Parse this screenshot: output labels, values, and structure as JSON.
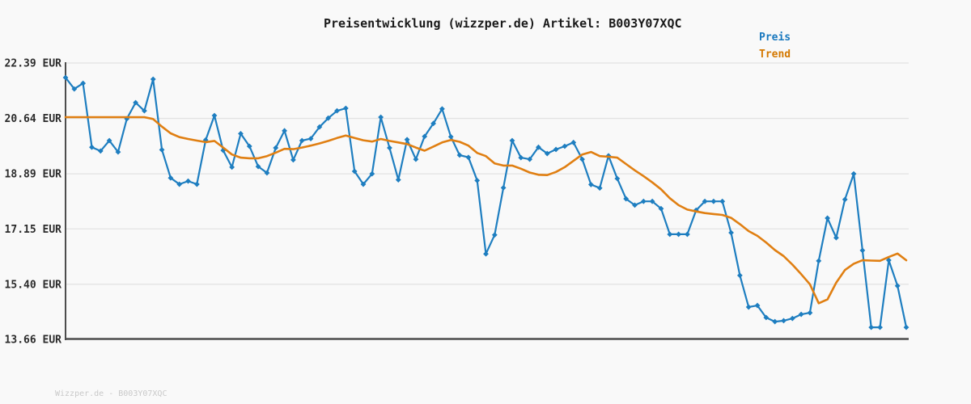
{
  "title": "Preisentwicklung (wizzper.de) Artikel: B003Y07XQC",
  "legend": {
    "preis_label": "Preis",
    "trend_label": "Trend"
  },
  "footer": "Wizzper.de - B003Y07XQC",
  "colors": {
    "background": "#f9f9f9",
    "grid": "#e3e3e3",
    "axis": "#4d4d4d",
    "price": "#1e7ec0",
    "trend": "#e07f12",
    "legend_preis": "#1878be",
    "legend_trend": "#d47800",
    "tick_text": "#2b2b2b",
    "footer_text": "#c9c9c9"
  },
  "chart_data": {
    "type": "line",
    "title": "Preisentwicklung (wizzper.de) Artikel: B003Y07XQC",
    "xlabel": "",
    "ylabel": "",
    "ylim": [
      13.66,
      22.39
    ],
    "grid": true,
    "legend_position": "top-right",
    "y_ticks": [
      {
        "label": "22.39 EUR",
        "value": 22.39
      },
      {
        "label": "20.64 EUR",
        "value": 20.64
      },
      {
        "label": "18.89 EUR",
        "value": 18.89
      },
      {
        "label": "17.15 EUR",
        "value": 17.15
      },
      {
        "label": "15.40 EUR",
        "value": 15.4
      },
      {
        "label": "13.66 EUR",
        "value": 13.66
      }
    ],
    "series": [
      {
        "name": "Preis",
        "color": "#1e7ec0",
        "markers": "diamond",
        "values": [
          21.93,
          21.57,
          21.75,
          19.73,
          19.61,
          19.94,
          19.58,
          20.63,
          21.14,
          20.88,
          21.88,
          19.65,
          18.76,
          18.56,
          18.66,
          18.56,
          19.96,
          20.73,
          19.63,
          19.1,
          20.16,
          19.76,
          19.12,
          18.92,
          19.71,
          20.25,
          19.33,
          19.94,
          20.0,
          20.37,
          20.65,
          20.88,
          20.96,
          18.97,
          18.56,
          18.89,
          20.68,
          19.71,
          18.7,
          19.97,
          19.35,
          20.07,
          20.48,
          20.94,
          20.06,
          19.48,
          19.41,
          18.68,
          16.36,
          16.96,
          18.45,
          19.94,
          19.4,
          19.35,
          19.73,
          19.53,
          19.66,
          19.76,
          19.88,
          19.35,
          18.55,
          18.44,
          19.46,
          18.74,
          18.1,
          17.9,
          18.02,
          18.02,
          17.79,
          16.98,
          16.98,
          16.98,
          17.74,
          18.02,
          18.02,
          18.02,
          17.03,
          15.68,
          14.68,
          14.73,
          14.35,
          14.22,
          14.25,
          14.32,
          14.45,
          14.5,
          16.14,
          17.49,
          16.87,
          18.08,
          18.89,
          16.47,
          14.04,
          14.04,
          16.16,
          15.35,
          14.04
        ]
      },
      {
        "name": "Trend",
        "color": "#e07f12",
        "markers": "none",
        "values": [
          20.68,
          20.68,
          20.68,
          20.68,
          20.68,
          20.68,
          20.68,
          20.68,
          20.68,
          20.68,
          20.62,
          20.38,
          20.17,
          20.05,
          19.99,
          19.94,
          19.89,
          19.93,
          19.72,
          19.5,
          19.4,
          19.38,
          19.38,
          19.45,
          19.56,
          19.68,
          19.67,
          19.72,
          19.78,
          19.85,
          19.93,
          20.02,
          20.1,
          20.02,
          19.95,
          19.91,
          19.99,
          19.93,
          19.88,
          19.83,
          19.72,
          19.62,
          19.75,
          19.88,
          19.96,
          19.9,
          19.78,
          19.55,
          19.45,
          19.22,
          19.15,
          19.15,
          19.05,
          18.93,
          18.86,
          18.85,
          18.95,
          19.1,
          19.3,
          19.5,
          19.58,
          19.45,
          19.43,
          19.4,
          19.2,
          19.0,
          18.82,
          18.62,
          18.4,
          18.12,
          17.9,
          17.76,
          17.7,
          17.65,
          17.62,
          17.59,
          17.5,
          17.3,
          17.08,
          16.93,
          16.72,
          16.48,
          16.29,
          16.02,
          15.72,
          15.4,
          14.8,
          14.92,
          15.45,
          15.85,
          16.05,
          16.16,
          16.15,
          16.14,
          16.26,
          16.37,
          16.16
        ]
      }
    ]
  }
}
